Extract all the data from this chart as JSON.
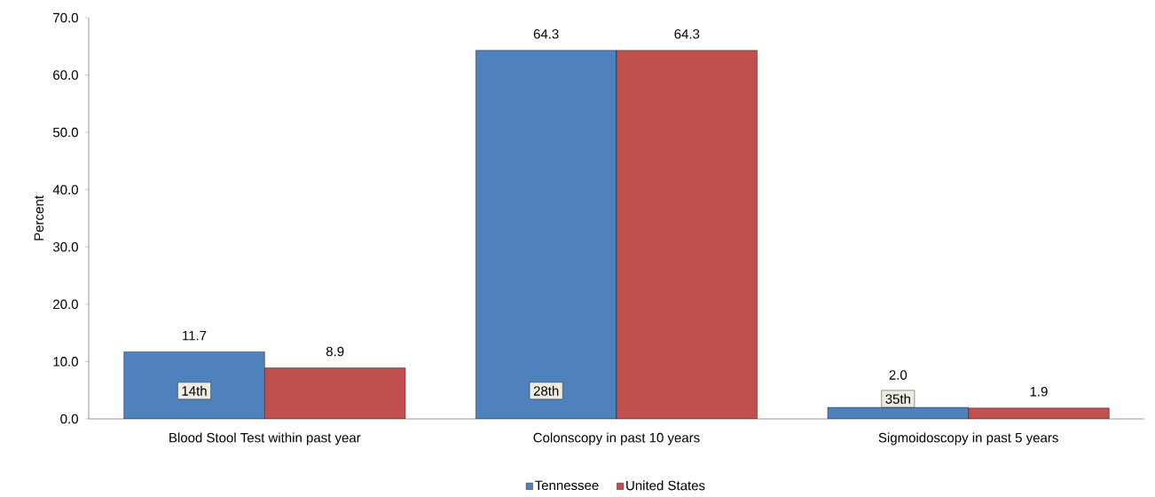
{
  "chart_data": {
    "type": "bar",
    "ylabel": "Percent",
    "categories": [
      "Blood Stool Test within past year",
      "Colonscopy in past 10 years",
      "Sigmoidoscopy in past 5 years"
    ],
    "series": [
      {
        "name": "Tennessee",
        "color": "#4f81bd",
        "values": [
          11.7,
          64.3,
          2.0
        ],
        "value_labels": [
          "11.7",
          "64.3",
          "2.0"
        ]
      },
      {
        "name": "United States",
        "color": "#c0504d",
        "values": [
          8.9,
          64.3,
          1.9
        ],
        "value_labels": [
          "8.9",
          "64.3",
          "1.9"
        ]
      }
    ],
    "ylim": [
      0,
      70
    ],
    "yticks": [
      {
        "value": 0,
        "label": "0.0"
      },
      {
        "value": 10,
        "label": "10.0"
      },
      {
        "value": 20,
        "label": "20.0"
      },
      {
        "value": 30,
        "label": "30.0"
      },
      {
        "value": 40,
        "label": "40.0"
      },
      {
        "value": 50,
        "label": "50.0"
      },
      {
        "value": 60,
        "label": "60.0"
      },
      {
        "value": 70,
        "label": "70.0"
      }
    ],
    "legend": "bottom",
    "grid": false,
    "annotations": [
      "14th",
      "28th",
      "35th"
    ]
  }
}
